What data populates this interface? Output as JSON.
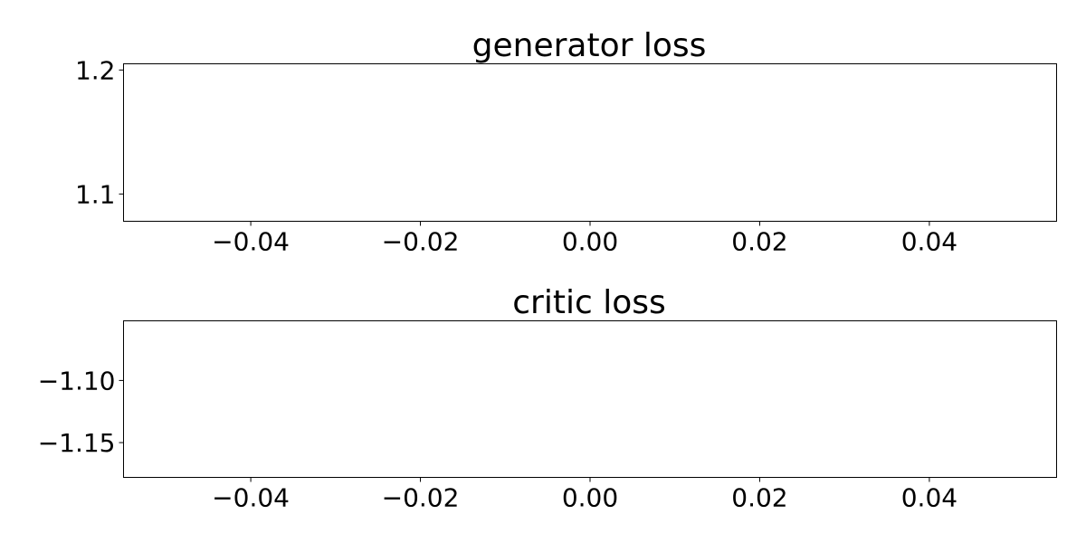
{
  "chart_data": [
    {
      "type": "line",
      "title": "generator loss",
      "xlabel": "",
      "ylabel": "",
      "xlim": [
        -0.055,
        0.055
      ],
      "ylim": [
        1.078,
        1.205
      ],
      "x_ticks": [
        -0.04,
        -0.02,
        0.0,
        0.02,
        0.04
      ],
      "x_tick_labels": [
        "−0.04",
        "−0.02",
        "0.00",
        "0.02",
        "0.04"
      ],
      "y_ticks": [
        1.1,
        1.2
      ],
      "y_tick_labels": [
        "1.1",
        "1.2"
      ],
      "series": [],
      "grid": false
    },
    {
      "type": "line",
      "title": "critic loss",
      "xlabel": "",
      "ylabel": "",
      "xlim": [
        -0.055,
        0.055
      ],
      "ylim": [
        -1.178,
        -1.052
      ],
      "x_ticks": [
        -0.04,
        -0.02,
        0.0,
        0.02,
        0.04
      ],
      "x_tick_labels": [
        "−0.04",
        "−0.02",
        "0.00",
        "0.02",
        "0.04"
      ],
      "y_ticks": [
        -1.1,
        -1.15
      ],
      "y_tick_labels": [
        "−1.10",
        "−1.15"
      ],
      "series": [],
      "grid": false
    }
  ]
}
